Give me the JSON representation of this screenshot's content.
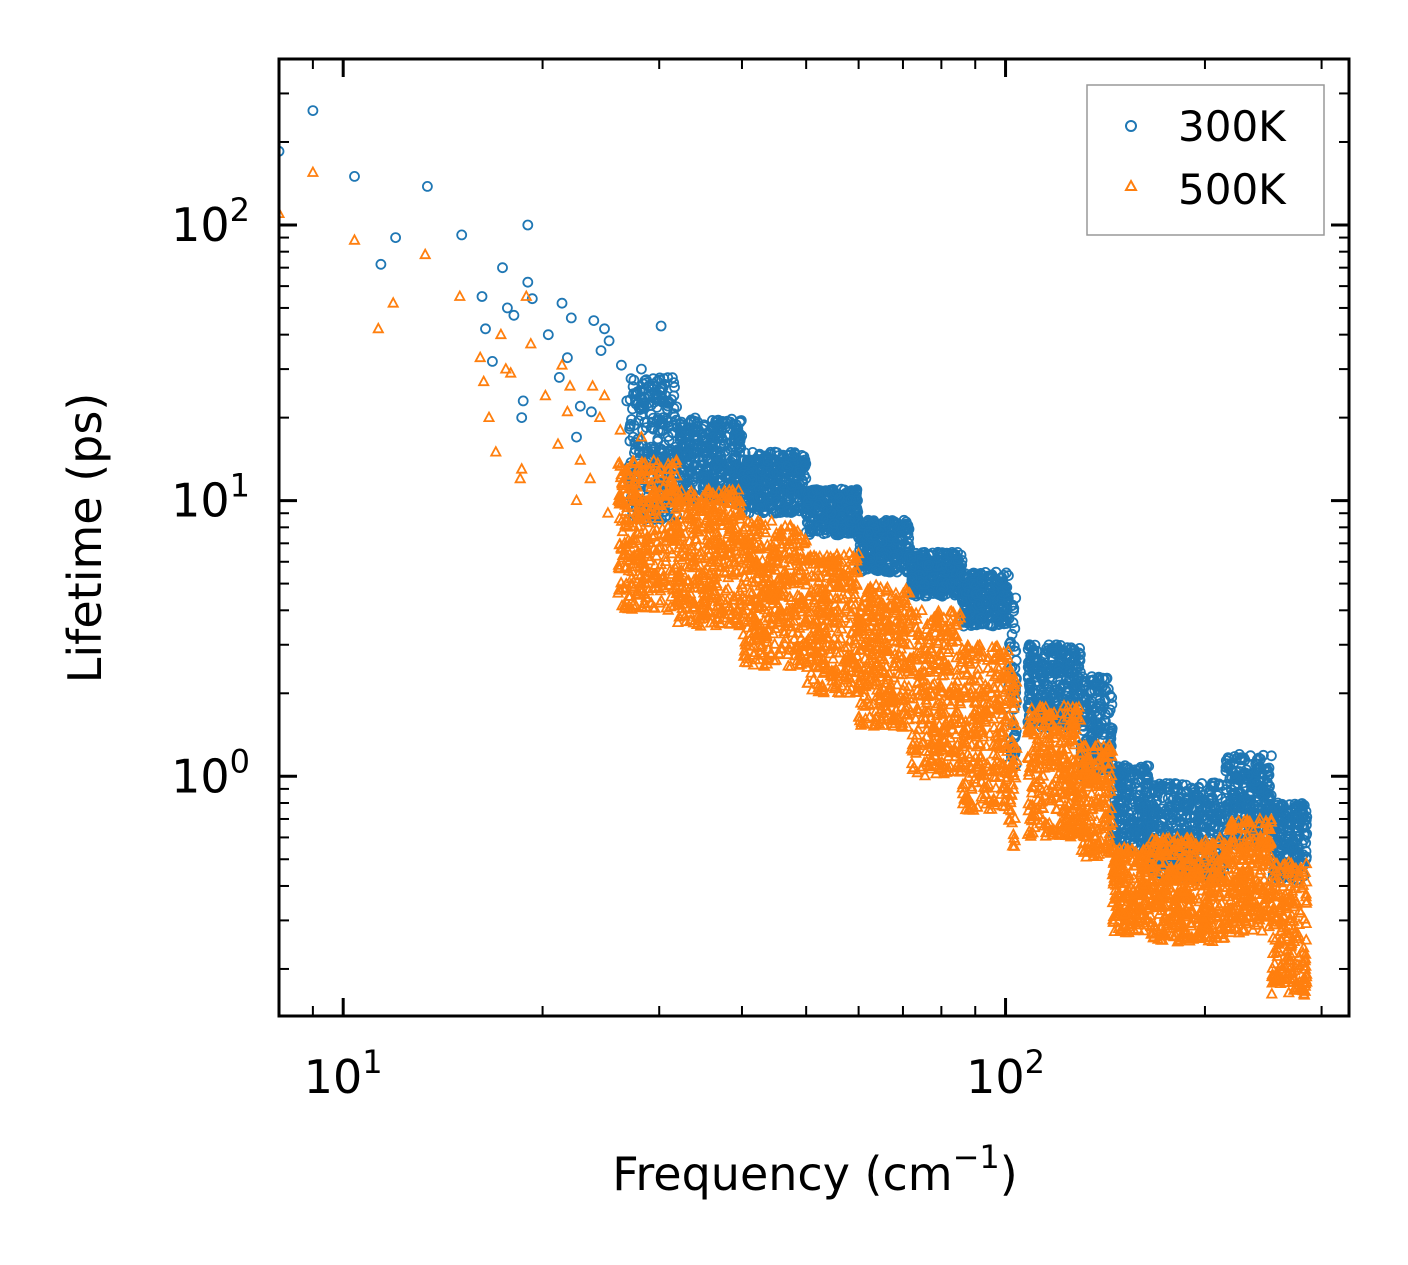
{
  "chart_data": {
    "type": "scatter",
    "title": "",
    "xlabel": "Frequency (cm",
    "xlabel_sup": "−1",
    "xlabel_close": ")",
    "ylabel": "Lifetime (ps)",
    "xscale": "log",
    "yscale": "log",
    "xlim": [
      8,
      330
    ],
    "ylim": [
      0.135,
      400
    ],
    "x_ticks": [
      {
        "value": 10,
        "base": "10",
        "exp": "1"
      },
      {
        "value": 100,
        "base": "10",
        "exp": "2"
      }
    ],
    "y_ticks": [
      {
        "value": 1,
        "base": "10",
        "exp": "0"
      },
      {
        "value": 10,
        "base": "10",
        "exp": "1"
      },
      {
        "value": 100,
        "base": "10",
        "exp": "2"
      }
    ],
    "legend_position": "top-right",
    "series": [
      {
        "name": "300K",
        "color": "#1f77b4",
        "marker": "circle",
        "low_freq_points": [
          [
            8.0,
            185
          ],
          [
            9.0,
            260
          ],
          [
            10.4,
            150
          ],
          [
            11.4,
            72
          ],
          [
            12.0,
            90
          ],
          [
            13.4,
            138
          ],
          [
            15.1,
            92
          ],
          [
            16.2,
            55
          ],
          [
            16.4,
            42
          ],
          [
            16.8,
            32
          ],
          [
            17.4,
            70
          ],
          [
            17.7,
            50
          ],
          [
            18.1,
            47
          ],
          [
            18.6,
            20
          ],
          [
            18.7,
            23
          ],
          [
            19.0,
            62
          ],
          [
            19.0,
            100
          ],
          [
            19.3,
            54
          ],
          [
            20.4,
            40
          ],
          [
            21.2,
            28
          ],
          [
            21.4,
            52
          ],
          [
            21.8,
            33
          ],
          [
            22.1,
            46
          ],
          [
            22.5,
            17
          ],
          [
            22.8,
            22
          ],
          [
            23.7,
            21
          ],
          [
            23.9,
            45
          ],
          [
            24.5,
            35
          ],
          [
            24.8,
            42
          ],
          [
            25.2,
            38
          ],
          [
            26.3,
            31
          ],
          [
            26.8,
            23
          ],
          [
            27.4,
            17
          ],
          [
            28.2,
            30
          ],
          [
            30.2,
            43
          ]
        ],
        "bands": [
          {
            "x": [
              27,
              32
            ],
            "y": [
              8.5,
              28
            ]
          },
          {
            "x": [
              32,
              40
            ],
            "y": [
              10,
              20
            ]
          },
          {
            "x": [
              40,
              50
            ],
            "y": [
              9,
              15
            ]
          },
          {
            "x": [
              50,
              60
            ],
            "y": [
              7.5,
              11
            ]
          },
          {
            "x": [
              60,
              72
            ],
            "y": [
              5.5,
              8.5
            ]
          },
          {
            "x": [
              72,
              86
            ],
            "y": [
              4.5,
              6.5
            ]
          },
          {
            "x": [
              86,
              101
            ],
            "y": [
              3.5,
              5.5
            ]
          },
          {
            "x": [
              101,
              104
            ],
            "y": [
              1.1,
              4.5
            ]
          },
          {
            "x": [
              108,
              130
            ],
            "y": [
              1.5,
              3.0
            ]
          },
          {
            "x": [
              130,
              145
            ],
            "y": [
              1.0,
              2.3
            ]
          },
          {
            "x": [
              145,
              165
            ],
            "y": [
              0.55,
              1.1
            ]
          },
          {
            "x": [
              165,
              215
            ],
            "y": [
              0.42,
              0.95
            ]
          },
          {
            "x": [
              215,
              252
            ],
            "y": [
              0.55,
              1.2
            ]
          },
          {
            "x": [
              252,
              285
            ],
            "y": [
              0.42,
              0.8
            ]
          }
        ]
      },
      {
        "name": "500K",
        "color": "#ff7f0e",
        "marker": "triangle",
        "low_freq_points": [
          [
            8.0,
            110
          ],
          [
            9.0,
            155
          ],
          [
            10.4,
            88
          ],
          [
            11.3,
            42
          ],
          [
            11.9,
            52
          ],
          [
            13.3,
            78
          ],
          [
            15.0,
            55
          ],
          [
            16.1,
            33
          ],
          [
            16.3,
            27
          ],
          [
            16.6,
            20
          ],
          [
            17.0,
            15
          ],
          [
            17.3,
            40
          ],
          [
            17.6,
            30
          ],
          [
            17.9,
            29
          ],
          [
            18.5,
            12
          ],
          [
            18.6,
            13
          ],
          [
            18.9,
            55
          ],
          [
            19.2,
            37
          ],
          [
            20.2,
            24
          ],
          [
            21.1,
            16
          ],
          [
            21.4,
            31
          ],
          [
            21.8,
            21
          ],
          [
            22.0,
            26
          ],
          [
            22.5,
            10
          ],
          [
            22.8,
            14
          ],
          [
            23.6,
            12
          ],
          [
            23.8,
            26
          ],
          [
            24.4,
            20
          ],
          [
            24.8,
            24
          ],
          [
            25.1,
            9
          ],
          [
            26.2,
            18
          ],
          [
            26.8,
            13
          ],
          [
            27.3,
            11
          ],
          [
            28.2,
            17
          ]
        ],
        "bands": [
          {
            "x": [
              26,
              32
            ],
            "y": [
              4.0,
              14
            ]
          },
          {
            "x": [
              32,
              40
            ],
            "y": [
              3.5,
              11
            ]
          },
          {
            "x": [
              40,
              50
            ],
            "y": [
              2.5,
              8.5
            ]
          },
          {
            "x": [
              50,
              60
            ],
            "y": [
              2.0,
              6.5
            ]
          },
          {
            "x": [
              60,
              72
            ],
            "y": [
              1.5,
              5.0
            ]
          },
          {
            "x": [
              72,
              86
            ],
            "y": [
              1.0,
              4.0
            ]
          },
          {
            "x": [
              86,
              101
            ],
            "y": [
              0.75,
              3.0
            ]
          },
          {
            "x": [
              101,
              104
            ],
            "y": [
              0.55,
              2.5
            ]
          },
          {
            "x": [
              108,
              130
            ],
            "y": [
              0.6,
              1.8
            ]
          },
          {
            "x": [
              130,
              145
            ],
            "y": [
              0.5,
              1.3
            ]
          },
          {
            "x": [
              145,
              165
            ],
            "y": [
              0.27,
              0.55
            ]
          },
          {
            "x": [
              165,
              215
            ],
            "y": [
              0.25,
              0.6
            ]
          },
          {
            "x": [
              215,
              252
            ],
            "y": [
              0.27,
              0.7
            ]
          },
          {
            "x": [
              252,
              285
            ],
            "y": [
              0.16,
              0.5
            ]
          }
        ]
      }
    ]
  }
}
